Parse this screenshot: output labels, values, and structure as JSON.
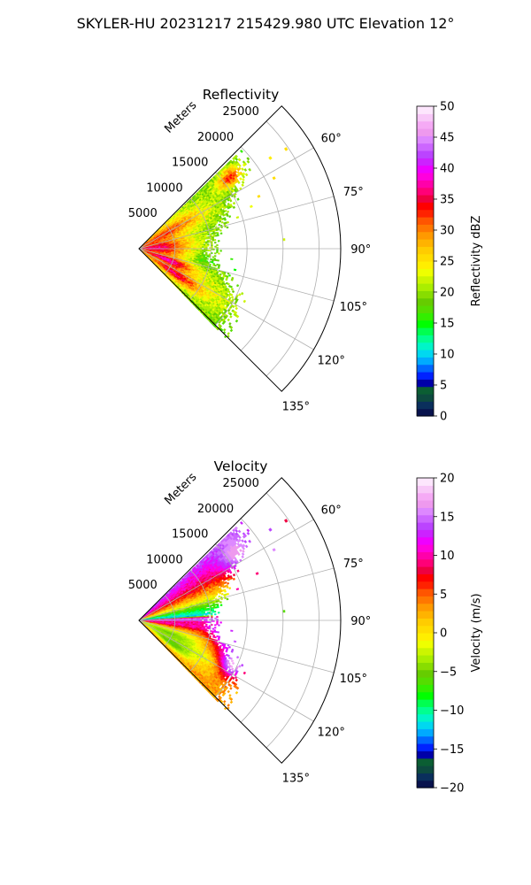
{
  "figure": {
    "title": "SKYLER-HU  20231217  215429.980 UTC Elevation 12°"
  },
  "chart_data": [
    {
      "type": "polar-sector",
      "title": "Reflectivity",
      "range_label": "Meters",
      "range_ticks": [
        5000,
        10000,
        15000,
        20000,
        25000
      ],
      "range_tick_labels": [
        "5000",
        "10000",
        "15000",
        "20000",
        "25000"
      ],
      "rmax": 28000,
      "azimuth_range_deg": [
        45,
        135
      ],
      "azimuth_ticks_deg": [
        60,
        75,
        90,
        105,
        120,
        135
      ],
      "azimuth_tick_labels": [
        "60°",
        "75°",
        "90°",
        "105°",
        "120°",
        "135°"
      ],
      "grid": true,
      "colorbar": {
        "label": "Reflectivity dBZ",
        "min": 0,
        "max": 50,
        "ticks": [
          0,
          5,
          10,
          15,
          20,
          25,
          30,
          35,
          40,
          45,
          50
        ],
        "tick_labels": [
          "0",
          "5",
          "10",
          "15",
          "20",
          "25",
          "30",
          "35",
          "40",
          "45",
          "50"
        ],
        "colors": [
          "#08124d",
          "#0a2f5c",
          "#0d4a3f",
          "#0b5e33",
          "#0000a8",
          "#0022ff",
          "#0066ff",
          "#00aaff",
          "#00d8f0",
          "#00f5c8",
          "#00ff90",
          "#00ff50",
          "#00ff00",
          "#33ee00",
          "#55dd00",
          "#66cc00",
          "#88dd00",
          "#aaee00",
          "#ccf500",
          "#eeff00",
          "#ffee00",
          "#ffdd00",
          "#ffcc00",
          "#ffb300",
          "#ff9900",
          "#ff7700",
          "#ff5500",
          "#ff2200",
          "#ff0000",
          "#ee0040",
          "#ff0077",
          "#ff00aa",
          "#ff00dd",
          "#ee00ff",
          "#cc22ff",
          "#bb44ff",
          "#cc66ff",
          "#dd88ff",
          "#ee99ee",
          "#f5aaf5",
          "#f8c8f8",
          "#fde6fd"
        ]
      },
      "echo": {
        "azimuth_min_deg": 46,
        "azimuth_max_deg": 136,
        "outer_edge_m": [
          [
            48,
            19000
          ],
          [
            55,
            18000
          ],
          [
            60,
            15500
          ],
          [
            65,
            14000
          ],
          [
            70,
            12800
          ],
          [
            75,
            12000
          ],
          [
            80,
            10800
          ],
          [
            85,
            10500
          ],
          [
            90,
            10200
          ],
          [
            95,
            10400
          ],
          [
            100,
            11000
          ],
          [
            105,
            12000
          ],
          [
            110,
            13800
          ],
          [
            115,
            15000
          ],
          [
            120,
            15500
          ],
          [
            125,
            15800
          ],
          [
            130,
            16000
          ],
          [
            135,
            16500
          ]
        ],
        "background_dbz": 20,
        "features": [
          {
            "az": 88,
            "r": 3000,
            "dbz": 30,
            "sa": 12,
            "sr": 3000
          },
          {
            "az": 60,
            "r": 6000,
            "dbz": 28,
            "sa": 6,
            "sr": 4000
          },
          {
            "az": 52,
            "r": 16000,
            "dbz": 34,
            "sa": 3,
            "sr": 1500
          },
          {
            "az": 112,
            "r": 5000,
            "dbz": 33,
            "sa": 4,
            "sr": 2500
          },
          {
            "az": 125,
            "r": 6500,
            "dbz": 33,
            "sa": 4,
            "sr": 2500
          },
          {
            "az": 122,
            "r": 12000,
            "dbz": 24,
            "sa": 6,
            "sr": 3000
          },
          {
            "az": 100,
            "r": 9000,
            "dbz": 17,
            "sa": 5,
            "sr": 1500
          }
        ],
        "speckle": [
          {
            "az": 55,
            "r": 22000,
            "dbz": 24
          },
          {
            "az": 55.5,
            "r": 24500,
            "dbz": 26
          },
          {
            "az": 62,
            "r": 21000,
            "dbz": 26
          },
          {
            "az": 66,
            "r": 18000,
            "dbz": 25
          },
          {
            "az": 69,
            "r": 16500,
            "dbz": 23
          },
          {
            "az": 72,
            "r": 14200,
            "dbz": 22
          },
          {
            "az": 86,
            "r": 20000,
            "dbz": 22
          },
          {
            "az": 96,
            "r": 12800,
            "dbz": 16
          },
          {
            "az": 102,
            "r": 13500,
            "dbz": 15
          }
        ]
      }
    },
    {
      "type": "polar-sector",
      "title": "Velocity",
      "range_label": "Meters",
      "range_ticks": [
        5000,
        10000,
        15000,
        20000,
        25000
      ],
      "range_tick_labels": [
        "5000",
        "10000",
        "15000",
        "20000",
        "25000"
      ],
      "rmax": 28000,
      "azimuth_range_deg": [
        45,
        135
      ],
      "azimuth_ticks_deg": [
        60,
        75,
        90,
        105,
        120,
        135
      ],
      "azimuth_tick_labels": [
        "60°",
        "75°",
        "90°",
        "105°",
        "120°",
        "135°"
      ],
      "grid": true,
      "colorbar": {
        "label": "Velocity (m/s)",
        "min": -20,
        "max": 20,
        "ticks": [
          -20,
          -15,
          -10,
          -5,
          0,
          5,
          10,
          15,
          20
        ],
        "tick_labels": [
          "−20",
          "−15",
          "−10",
          "−5",
          "0",
          "5",
          "10",
          "15",
          "20"
        ],
        "colors": [
          "#08124d",
          "#0a2f5c",
          "#0d4a3f",
          "#0b5e33",
          "#0000a8",
          "#0022ff",
          "#0066ff",
          "#00aaff",
          "#00d8f0",
          "#00f5c8",
          "#00ff90",
          "#00ff50",
          "#00ff00",
          "#33ee00",
          "#55dd00",
          "#66cc00",
          "#88dd00",
          "#aaee00",
          "#ccf500",
          "#eeff00",
          "#ffee00",
          "#ffdd00",
          "#ffcc00",
          "#ffb300",
          "#ff9900",
          "#ff7700",
          "#ff5500",
          "#ff2200",
          "#ff0000",
          "#ee0040",
          "#ff0077",
          "#ff00aa",
          "#ff00dd",
          "#ee00ff",
          "#cc22ff",
          "#bb44ff",
          "#cc66ff",
          "#dd88ff",
          "#ee99ee",
          "#f5aaf5",
          "#f8c8f8",
          "#fde6fd"
        ]
      },
      "echo": {
        "azimuth_min_deg": 46,
        "azimuth_max_deg": 136,
        "outer_edge_m": [
          [
            48,
            19000
          ],
          [
            55,
            18000
          ],
          [
            60,
            15500
          ],
          [
            65,
            14000
          ],
          [
            70,
            12800
          ],
          [
            75,
            12000
          ],
          [
            80,
            10800
          ],
          [
            85,
            10500
          ],
          [
            90,
            10200
          ],
          [
            95,
            10400
          ],
          [
            100,
            11000
          ],
          [
            105,
            12000
          ],
          [
            110,
            13800
          ],
          [
            115,
            15000
          ],
          [
            120,
            15500
          ],
          [
            125,
            15800
          ],
          [
            130,
            16000
          ],
          [
            135,
            16500
          ]
        ],
        "velocity_profile": [
          [
            46,
            14
          ],
          [
            50,
            12
          ],
          [
            56,
            10
          ],
          [
            62,
            7
          ],
          [
            68,
            3
          ],
          [
            74,
            -2
          ],
          [
            78,
            -6
          ],
          [
            82,
            -10
          ],
          [
            86,
            -13
          ],
          [
            88,
            16
          ],
          [
            90,
            12
          ],
          [
            93,
            9
          ],
          [
            97,
            10
          ],
          [
            100,
            6
          ],
          [
            104,
            3
          ],
          [
            108,
            1
          ],
          [
            112,
            2
          ],
          [
            116,
            0
          ],
          [
            120,
            -2
          ],
          [
            124,
            1
          ],
          [
            128,
            2
          ],
          [
            132,
            3
          ],
          [
            136,
            3
          ]
        ],
        "features": [
          {
            "az": 113,
            "r": 4500,
            "v": -5,
            "sa": 5,
            "sr": 3500
          },
          {
            "az": 125,
            "r": 5500,
            "v": -6,
            "sa": 4,
            "sr": 2500
          },
          {
            "az": 100,
            "r": 13000,
            "v": 16,
            "sa": 8,
            "sr": 2000
          },
          {
            "az": 115,
            "r": 14500,
            "v": 18,
            "sa": 6,
            "sr": 1500
          },
          {
            "az": 55,
            "r": 16500,
            "v": 17,
            "sa": 6,
            "sr": 2000
          }
        ],
        "speckle": [
          {
            "az": 55,
            "r": 22000,
            "v": 14
          },
          {
            "az": 55.5,
            "r": 24500,
            "v": 8
          },
          {
            "az": 62,
            "r": 21000,
            "v": 16
          },
          {
            "az": 68,
            "r": 17500,
            "v": 9
          },
          {
            "az": 72,
            "r": 14200,
            "v": 10
          },
          {
            "az": 86,
            "r": 20000,
            "v": -6
          },
          {
            "az": 96,
            "r": 12800,
            "v": 13
          },
          {
            "az": 102,
            "r": 13500,
            "v": 15
          }
        ]
      }
    }
  ]
}
